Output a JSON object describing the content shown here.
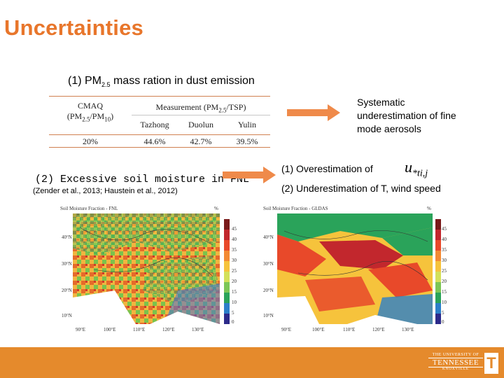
{
  "title": "Uncertainties",
  "subtitle1": {
    "prefix": "(1) PM",
    "sub": "2.5",
    "suffix": " mass ration in dust emission"
  },
  "table": {
    "col1_header_line1": "CMAQ",
    "col1_header_line2_a": "(PM",
    "col1_header_line2_sub1": "2.5",
    "col1_header_line2_b": "/PM",
    "col1_header_line2_sub2": "10",
    "col1_header_line2_c": ")",
    "meas_header_a": "Measurement (PM",
    "meas_header_sub": "2.5",
    "meas_header_b": "/TSP)",
    "sites": [
      "Tazhong",
      "Duolun",
      "Yulin"
    ],
    "cmaq_value": "20%",
    "site_values": [
      "44.6%",
      "42.7%",
      "39.5%"
    ]
  },
  "conclusion": [
    "Systematic",
    "underestimation of fine",
    "mode aerosols"
  ],
  "soil": {
    "heading": "(2) Excessive soil moisture in FNL",
    "citation": "(Zender et al., 2013; Haustein et al., 2012)"
  },
  "reasons": {
    "over": "(1) Overestimation of",
    "ustar_main": "u",
    "ustar_sub": "*ti,j",
    "under": "(2) Underestimation of T, wind speed"
  },
  "map_left": {
    "title": "Soil Moisture Fraction - FNL",
    "unit": "%"
  },
  "map_right": {
    "title": "Soil Moisture Fraction - GLDAS",
    "unit": "%"
  },
  "legend_ticks": [
    "45",
    "40",
    "35",
    "30",
    "25",
    "20",
    "15",
    "10",
    "5",
    "0"
  ],
  "lat_ticks": [
    "40°N",
    "30°N",
    "20°N",
    "10°N"
  ],
  "lon_ticks": [
    "90°E",
    "100°E",
    "110°E",
    "120°E",
    "130°E"
  ],
  "footer": {
    "line1": "THE UNIVERSITY OF",
    "line2": "TENNESSEE",
    "line3": "KNOXVILLE",
    "mark": "T"
  },
  "colors": {
    "accent": "#e8762b",
    "footer": "#e58a2c",
    "arrow": "#ef8a4a"
  }
}
